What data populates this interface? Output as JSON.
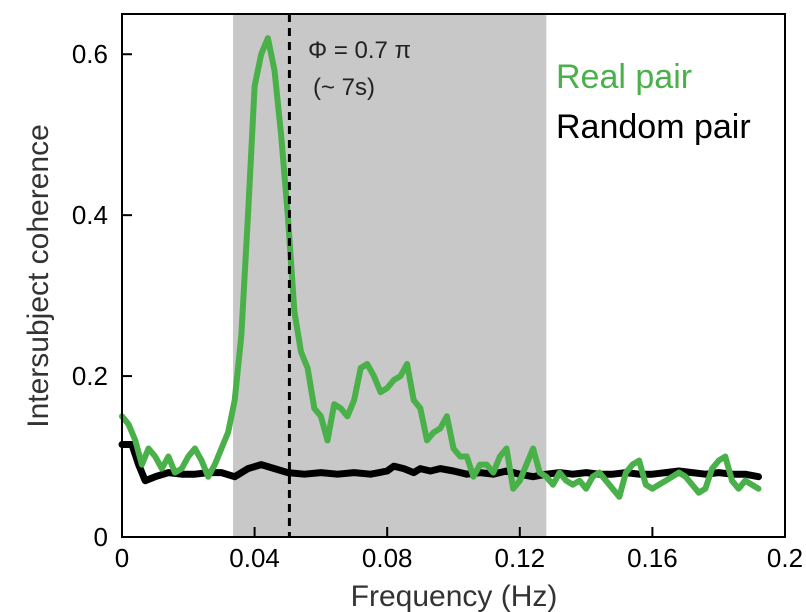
{
  "chart_data": {
    "type": "line",
    "xlabel": "Frequency (Hz)",
    "ylabel": "Intersubject coherence",
    "xlim": [
      0,
      0.2
    ],
    "ylim": [
      0,
      0.65
    ],
    "x_ticks": [
      0,
      0.04,
      0.08,
      0.12,
      0.16,
      0.2
    ],
    "x_tick_labels": [
      "0",
      "0.04",
      "0.08",
      "0.12",
      "0.16",
      "0.2"
    ],
    "y_ticks": [
      0,
      0.2,
      0.4,
      0.6
    ],
    "y_tick_labels": [
      "0",
      "0.2",
      "0.4",
      "0.6"
    ],
    "grid": false,
    "legend_position": "top-right",
    "shaded_band": {
      "x_start": 0.0335,
      "x_end": 0.128,
      "color": "#c8c8c8"
    },
    "reference_line": {
      "x": 0.0505,
      "style": "dashed",
      "color": "#000000"
    },
    "annotation": {
      "line1": "Φ = 0.7 π",
      "line2": "(~ 7s)"
    },
    "series": [
      {
        "name": "Real pair",
        "color": "#4ab04a",
        "x": [
          0.0,
          0.002,
          0.004,
          0.006,
          0.008,
          0.01,
          0.012,
          0.014,
          0.016,
          0.018,
          0.02,
          0.022,
          0.024,
          0.026,
          0.028,
          0.03,
          0.032,
          0.034,
          0.036,
          0.038,
          0.04,
          0.042,
          0.044,
          0.046,
          0.048,
          0.05,
          0.052,
          0.054,
          0.056,
          0.058,
          0.06,
          0.062,
          0.064,
          0.066,
          0.068,
          0.07,
          0.072,
          0.074,
          0.076,
          0.078,
          0.08,
          0.082,
          0.084,
          0.086,
          0.088,
          0.09,
          0.092,
          0.094,
          0.096,
          0.098,
          0.1,
          0.102,
          0.104,
          0.106,
          0.108,
          0.11,
          0.112,
          0.114,
          0.116,
          0.118,
          0.12,
          0.122,
          0.124,
          0.126,
          0.128,
          0.13,
          0.132,
          0.134,
          0.136,
          0.138,
          0.14,
          0.142,
          0.144,
          0.146,
          0.148,
          0.15,
          0.152,
          0.154,
          0.156,
          0.158,
          0.16,
          0.162,
          0.164,
          0.166,
          0.168,
          0.17,
          0.172,
          0.174,
          0.176,
          0.178,
          0.18,
          0.182,
          0.184,
          0.186,
          0.188,
          0.19,
          0.192
        ],
        "values": [
          0.15,
          0.14,
          0.12,
          0.09,
          0.11,
          0.1,
          0.085,
          0.1,
          0.08,
          0.085,
          0.1,
          0.11,
          0.095,
          0.075,
          0.09,
          0.11,
          0.13,
          0.17,
          0.25,
          0.4,
          0.56,
          0.6,
          0.62,
          0.58,
          0.5,
          0.4,
          0.28,
          0.23,
          0.21,
          0.16,
          0.15,
          0.12,
          0.165,
          0.16,
          0.15,
          0.17,
          0.21,
          0.215,
          0.2,
          0.18,
          0.185,
          0.195,
          0.2,
          0.215,
          0.17,
          0.16,
          0.12,
          0.13,
          0.135,
          0.15,
          0.11,
          0.1,
          0.1,
          0.075,
          0.09,
          0.09,
          0.08,
          0.1,
          0.11,
          0.06,
          0.07,
          0.09,
          0.11,
          0.08,
          0.075,
          0.065,
          0.08,
          0.07,
          0.065,
          0.07,
          0.06,
          0.075,
          0.08,
          0.07,
          0.06,
          0.05,
          0.08,
          0.09,
          0.095,
          0.065,
          0.06,
          0.065,
          0.07,
          0.075,
          0.08,
          0.075,
          0.065,
          0.055,
          0.06,
          0.085,
          0.095,
          0.1,
          0.07,
          0.06,
          0.07,
          0.065,
          0.06
        ]
      },
      {
        "name": "Random pair",
        "color": "#000000",
        "x": [
          0.0,
          0.003,
          0.005,
          0.007,
          0.01,
          0.014,
          0.018,
          0.022,
          0.026,
          0.03,
          0.034,
          0.038,
          0.042,
          0.046,
          0.05,
          0.055,
          0.06,
          0.065,
          0.07,
          0.075,
          0.08,
          0.082,
          0.085,
          0.088,
          0.09,
          0.093,
          0.096,
          0.1,
          0.104,
          0.108,
          0.112,
          0.116,
          0.12,
          0.124,
          0.128,
          0.132,
          0.136,
          0.14,
          0.144,
          0.148,
          0.152,
          0.156,
          0.16,
          0.164,
          0.168,
          0.172,
          0.176,
          0.18,
          0.184,
          0.188,
          0.192
        ],
        "values": [
          0.115,
          0.115,
          0.09,
          0.07,
          0.075,
          0.08,
          0.078,
          0.078,
          0.08,
          0.08,
          0.075,
          0.085,
          0.09,
          0.085,
          0.08,
          0.078,
          0.08,
          0.078,
          0.08,
          0.078,
          0.082,
          0.088,
          0.085,
          0.08,
          0.085,
          0.082,
          0.085,
          0.082,
          0.078,
          0.08,
          0.078,
          0.082,
          0.078,
          0.075,
          0.078,
          0.08,
          0.078,
          0.08,
          0.078,
          0.078,
          0.08,
          0.078,
          0.078,
          0.08,
          0.082,
          0.08,
          0.078,
          0.08,
          0.078,
          0.078,
          0.075
        ]
      }
    ]
  }
}
